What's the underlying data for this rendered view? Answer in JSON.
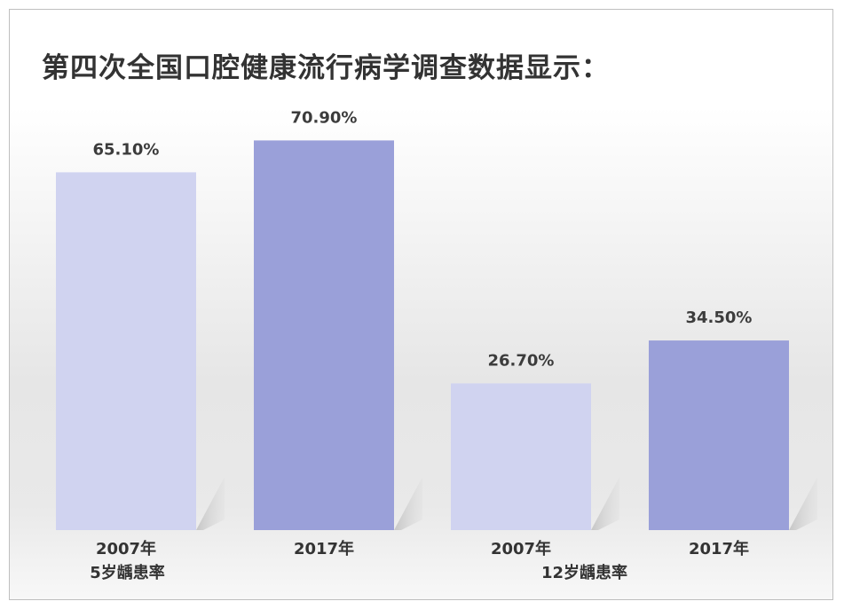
{
  "chart_data": {
    "type": "bar",
    "title": "第四次全国口腔健康流行病学调查数据显示：",
    "groups": [
      {
        "label": "5岁龋患率",
        "bars": [
          {
            "category": "2007年",
            "value": 65.1,
            "value_label": "65.10%"
          },
          {
            "category": "2017年",
            "value": 70.9,
            "value_label": "70.90%"
          }
        ]
      },
      {
        "label": "12岁龋患率",
        "bars": [
          {
            "category": "2007年",
            "value": 26.7,
            "value_label": "26.70%"
          },
          {
            "category": "2017年",
            "value": 34.5,
            "value_label": "34.50%"
          }
        ]
      }
    ],
    "ylim": [
      0,
      100
    ],
    "grid": false,
    "colors": {
      "2007年": "#d0d3f0",
      "2017年": "#9aa0d9"
    }
  }
}
